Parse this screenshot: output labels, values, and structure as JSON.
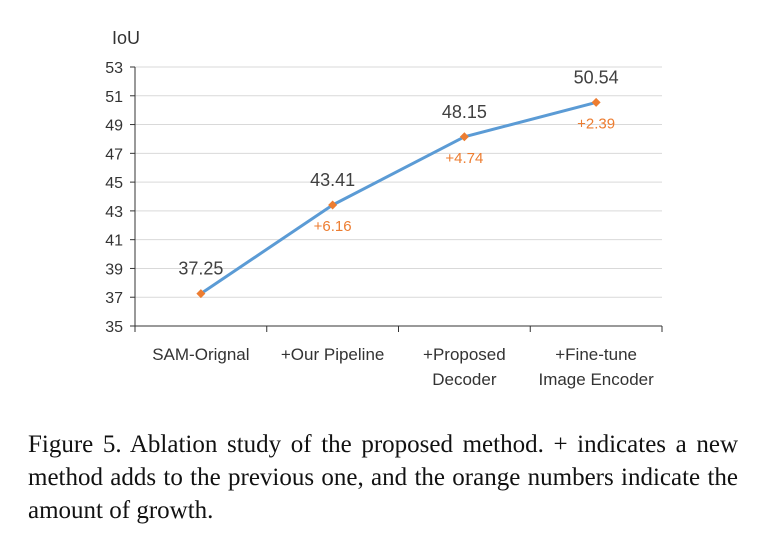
{
  "chart_data": {
    "type": "line",
    "ylabel": "IoU",
    "ylim": [
      35,
      53
    ],
    "yticks": [
      35,
      37,
      39,
      41,
      43,
      45,
      47,
      49,
      51,
      53
    ],
    "categories": [
      [
        "SAM-Orignal"
      ],
      [
        "+Our Pipeline"
      ],
      [
        "+Proposed",
        "Decoder"
      ],
      [
        "+Fine-tune",
        "Image Encoder"
      ]
    ],
    "series": [
      {
        "values": [
          37.25,
          43.41,
          48.15,
          50.54
        ],
        "value_labels": [
          "37.25",
          "43.41",
          "48.15",
          "50.54"
        ],
        "growth_labels": [
          "",
          "+6.16",
          "+4.74",
          "+2.39"
        ]
      }
    ],
    "grid": true,
    "colors": {
      "line": "#5b9bd5",
      "marker": "#ed7d31",
      "growth_text": "#ed7d31",
      "grid": "#d9d9d9",
      "axis": "#333333"
    }
  },
  "caption": "Figure 5.  Ablation study of the proposed method. + indicates a new method adds to the previous one, and the orange numbers indicate the amount of growth."
}
